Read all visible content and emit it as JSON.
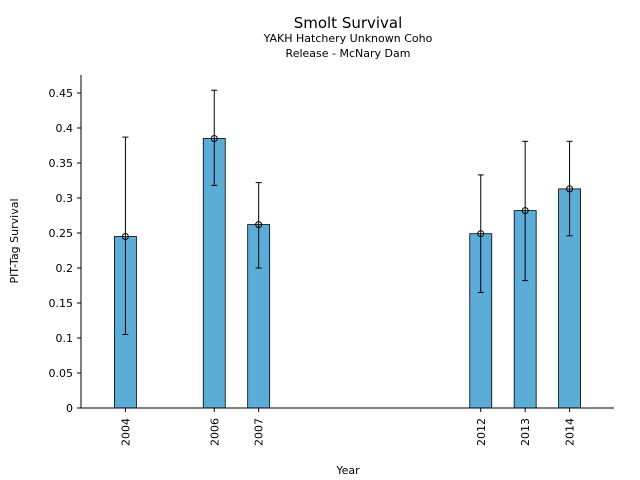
{
  "chart_data": {
    "type": "bar",
    "title": "Smolt Survival",
    "subtitle_lines": [
      "YAKH Hatchery Unknown Coho",
      "Release - McNary Dam"
    ],
    "xlabel": "Year",
    "ylabel": "PIT-Tag Survival",
    "x": [
      2004,
      2006,
      2007,
      2012,
      2013,
      2014
    ],
    "values": [
      0.245,
      0.385,
      0.262,
      0.249,
      0.282,
      0.313
    ],
    "error_low": [
      0.105,
      0.318,
      0.2,
      0.165,
      0.182,
      0.246
    ],
    "error_high": [
      0.387,
      0.454,
      0.322,
      0.333,
      0.381,
      0.381
    ],
    "xlim": [
      2003,
      2015
    ],
    "ylim": [
      0,
      0.475
    ],
    "yticks": [
      0,
      0.05,
      0.1,
      0.15,
      0.2,
      0.25,
      0.3,
      0.35,
      0.4,
      0.45
    ],
    "ytick_labels": [
      "0",
      "0.05",
      "0.1",
      "0.15",
      "0.2",
      "0.25",
      "0.3",
      "0.35",
      "0.4",
      "0.45"
    ],
    "bar_color": "#5bacd6",
    "edge_color": "#000000",
    "grid": false
  }
}
